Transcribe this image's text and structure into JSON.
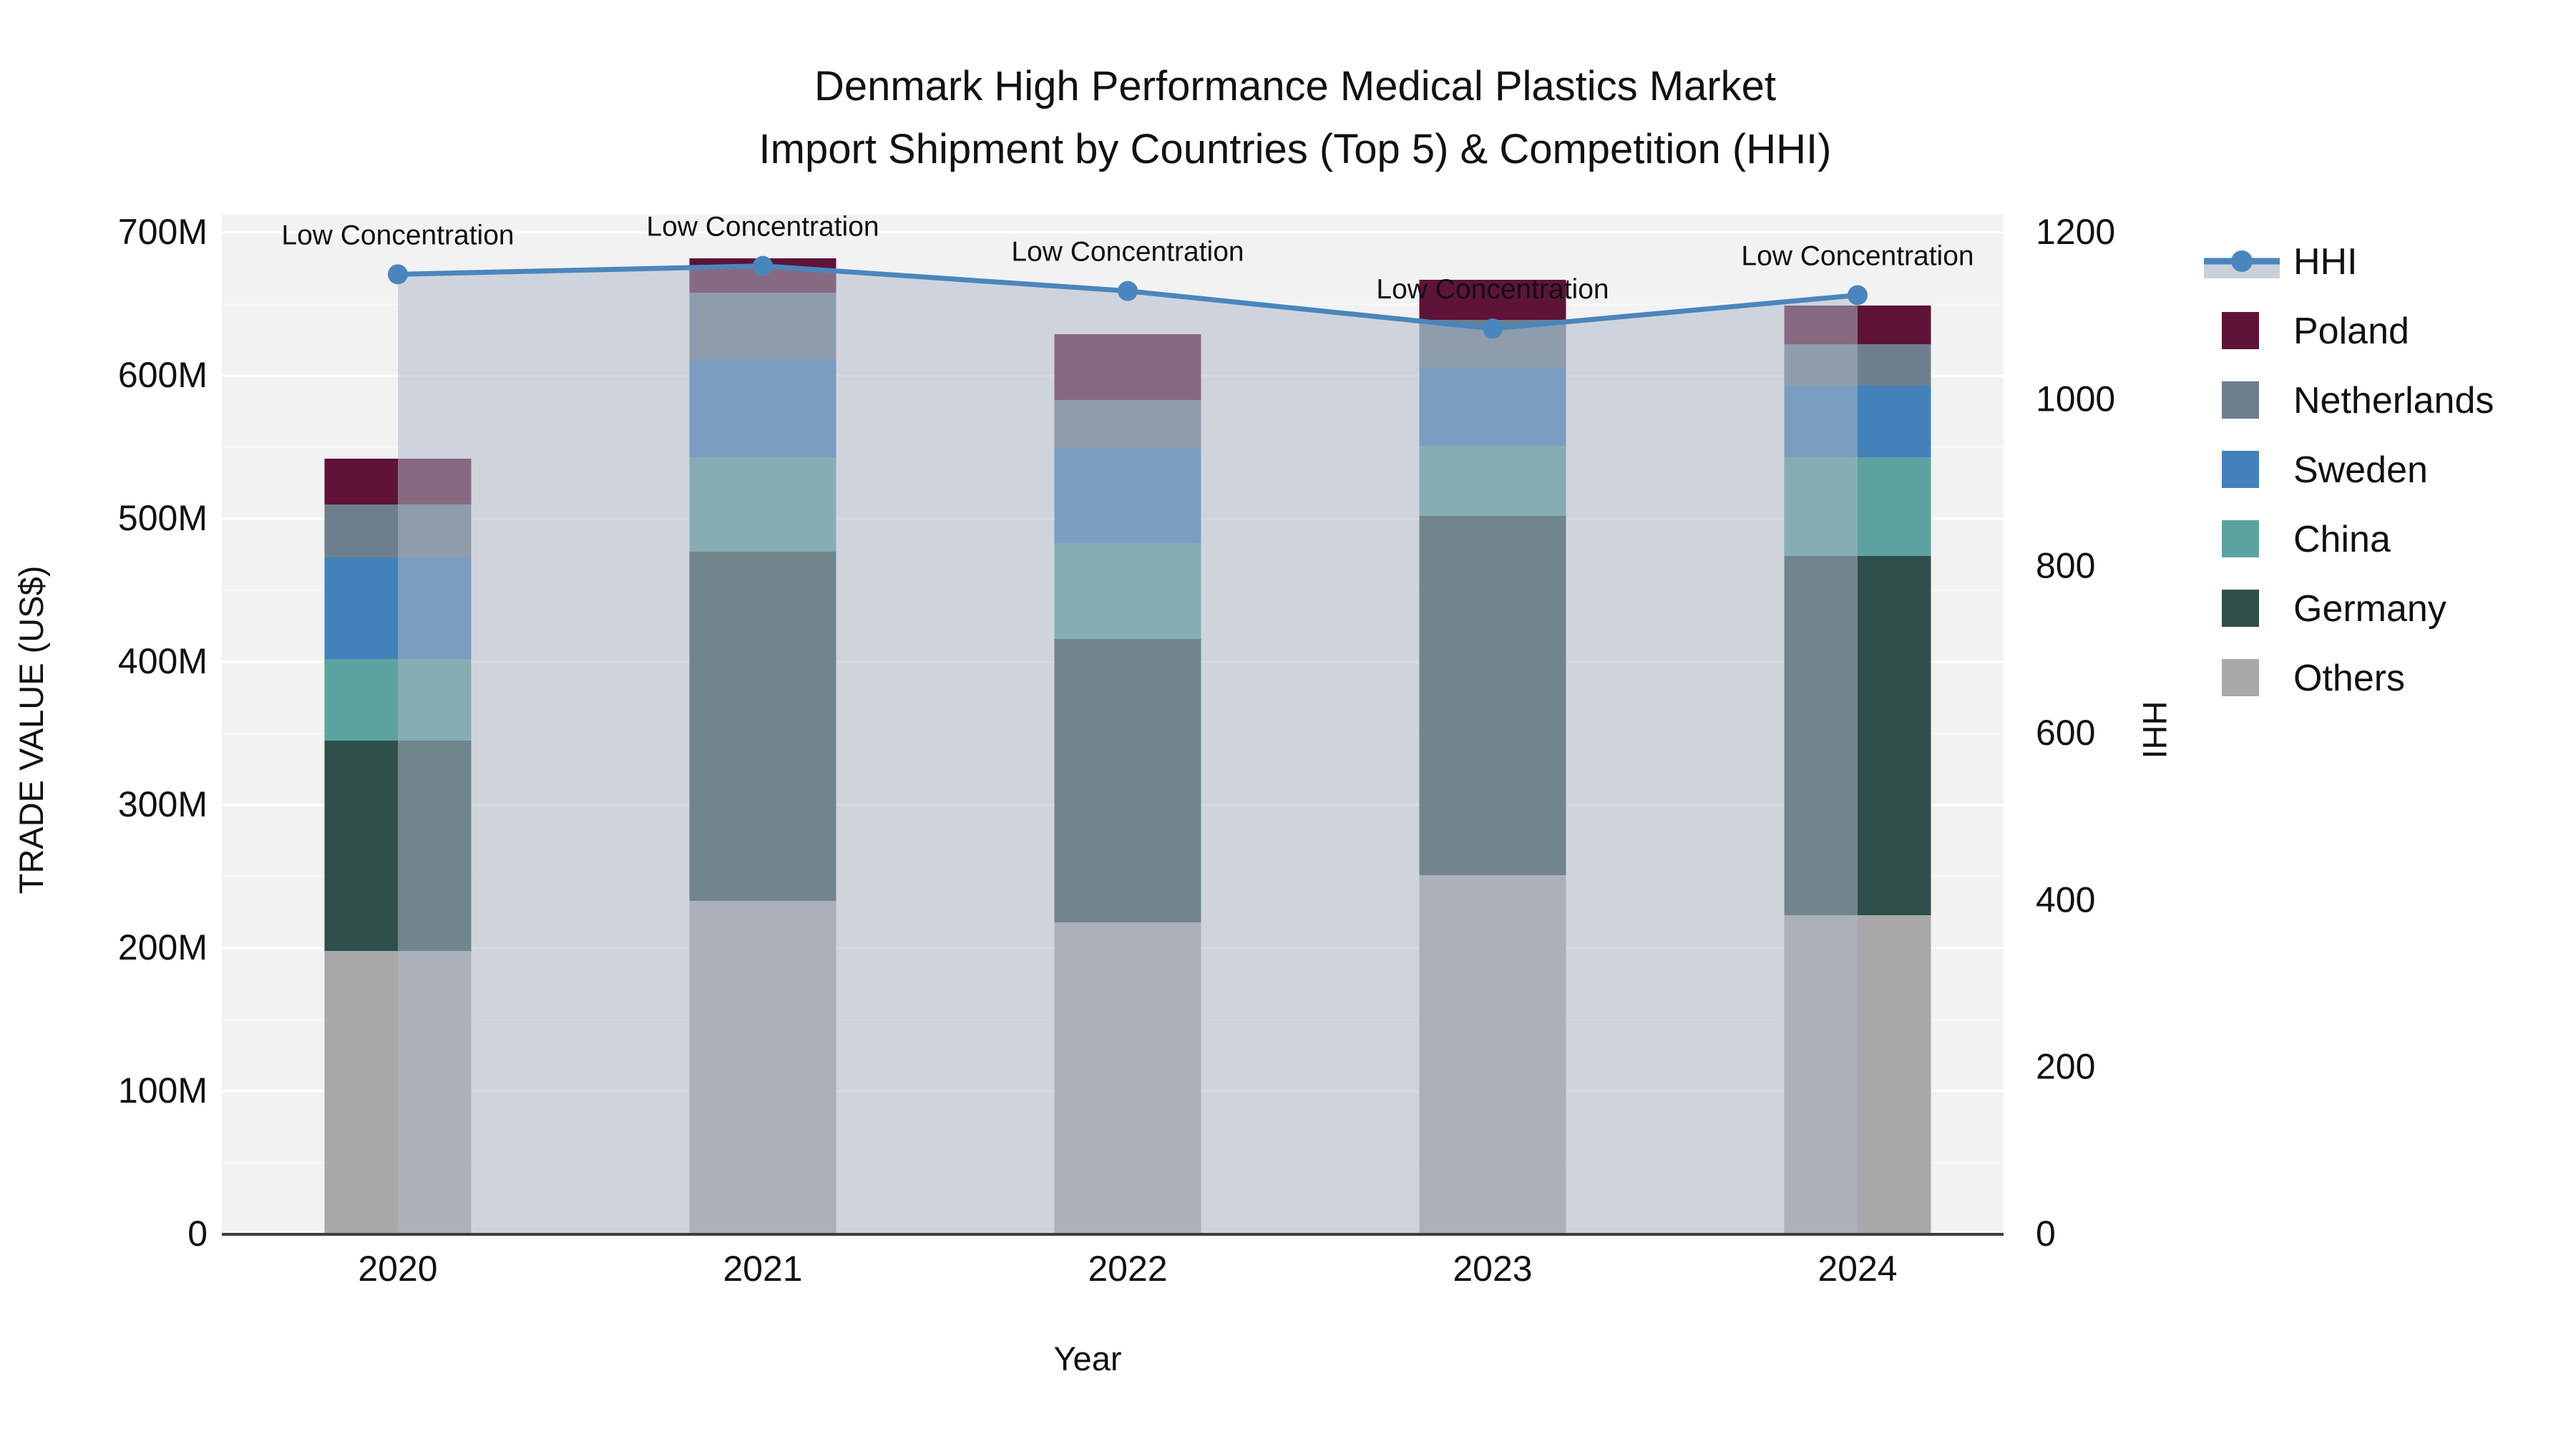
{
  "title": {
    "line1": "Denmark High Performance Medical Plastics Market",
    "line2": "Import Shipment by Countries (Top 5) & Competition (HHI)"
  },
  "axes": {
    "x_title": "Year",
    "y_left_title": "TRADE VALUE (US$)",
    "y_right_title": "HHI",
    "y_left_ticks": [
      "0",
      "100M",
      "200M",
      "300M",
      "400M",
      "500M",
      "600M",
      "700M"
    ],
    "y_right_ticks": [
      "0",
      "200",
      "400",
      "600",
      "800",
      "1000",
      "1200"
    ]
  },
  "annotation_label": "Low Concentration",
  "legend": [
    {
      "id": "hhi",
      "label": "HHI",
      "kind": "line"
    },
    {
      "id": "poland",
      "label": "Poland",
      "kind": "square"
    },
    {
      "id": "netherlands",
      "label": "Netherlands",
      "kind": "square"
    },
    {
      "id": "sweden",
      "label": "Sweden",
      "kind": "square"
    },
    {
      "id": "china",
      "label": "China",
      "kind": "square"
    },
    {
      "id": "germany",
      "label": "Germany",
      "kind": "square"
    },
    {
      "id": "others",
      "label": "Others",
      "kind": "square"
    }
  ],
  "colors": {
    "poland": "#5e1337",
    "netherlands": "#6e7e8e",
    "sweden": "#4381bb",
    "china": "#5ba2a0",
    "germany": "#2f4f4b",
    "others": "#a9a8a8",
    "hhi_line": "#4a86bd",
    "hhi_fill": "rgba(174,184,200,0.52)",
    "hhi_fill_swatch": "#c9d0da",
    "plot_bg": "#f2f2f2",
    "gridline": "#ffffff",
    "axis_line": "#3d3d3d",
    "text": "#111111"
  },
  "chart_data": {
    "type": "bar",
    "subtype": "stacked-bar-with-line",
    "title": "Denmark High Performance Medical Plastics Market Import Shipment by Countries (Top 5) & Competition (HHI)",
    "xlabel": "Year",
    "ylabel_left": "TRADE VALUE (US$)",
    "ylabel_right": "HHI",
    "categories": [
      "2020",
      "2021",
      "2022",
      "2023",
      "2024"
    ],
    "ylim_left_millions": [
      0,
      700
    ],
    "ylim_right_hhi": [
      0,
      1200
    ],
    "grid": true,
    "legend_position": "right",
    "series_stack_order_bottom_to_top": [
      "Others",
      "Germany",
      "China",
      "Sweden",
      "Netherlands",
      "Poland"
    ],
    "series": [
      {
        "name": "Others",
        "id": "others",
        "values_millions": [
          198,
          233,
          218,
          251,
          223
        ]
      },
      {
        "name": "Germany",
        "id": "germany",
        "values_millions": [
          147,
          244,
          198,
          251,
          251
        ]
      },
      {
        "name": "China",
        "id": "china",
        "values_millions": [
          57,
          66,
          67,
          49,
          69
        ]
      },
      {
        "name": "Sweden",
        "id": "sweden",
        "values_millions": [
          71,
          68,
          66,
          55,
          50
        ]
      },
      {
        "name": "Netherlands",
        "id": "netherlands",
        "values_millions": [
          37,
          47,
          34,
          33,
          29
        ]
      },
      {
        "name": "Poland",
        "id": "poland",
        "values_millions": [
          32,
          24,
          46,
          28,
          27
        ]
      }
    ],
    "bar_totals_millions": [
      542,
      682,
      629,
      667,
      649
    ],
    "hhi_line": {
      "name": "HHI",
      "values": [
        1150,
        1160,
        1130,
        1085,
        1125
      ],
      "fill_to_zero": true,
      "point_annotations": [
        "Low Concentration",
        "Low Concentration",
        "Low Concentration",
        "Low Concentration",
        "Low Concentration"
      ]
    }
  }
}
